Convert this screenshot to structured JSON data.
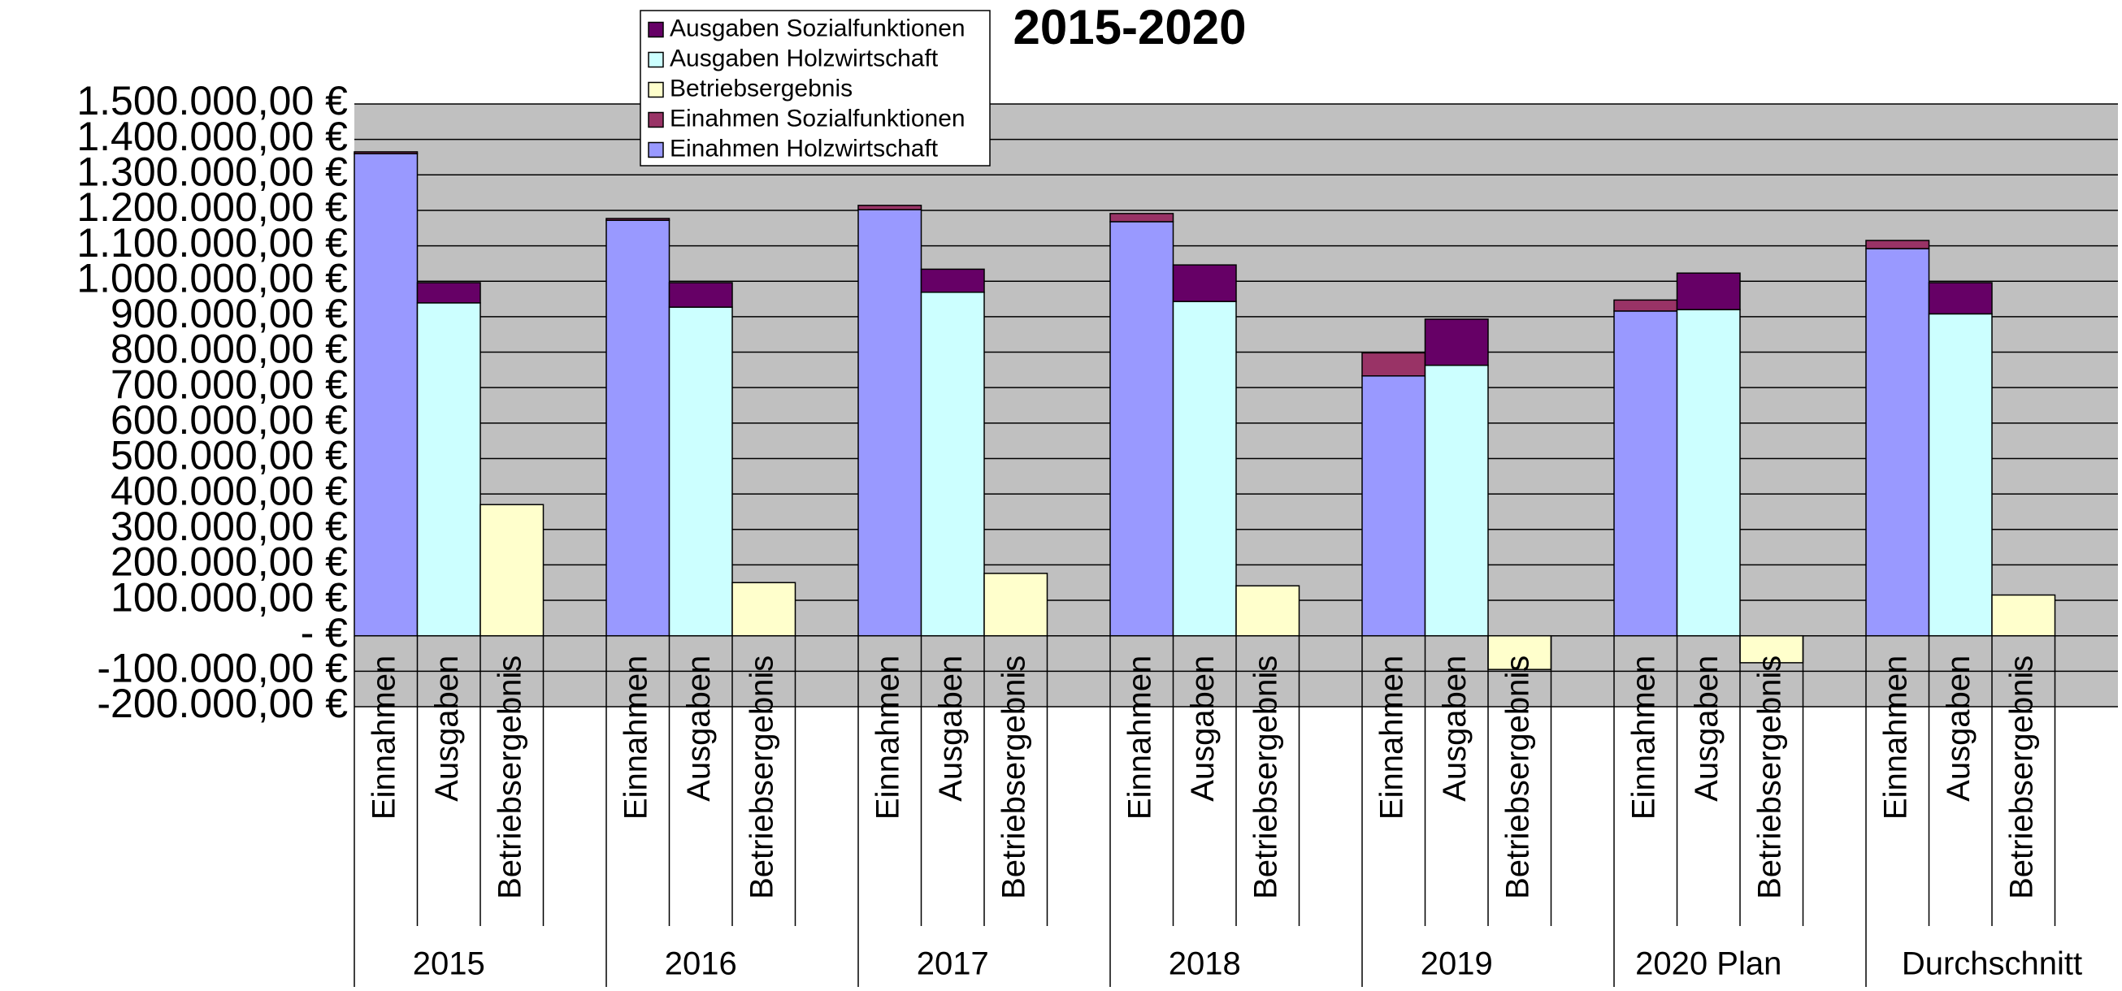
{
  "chart_data": {
    "type": "bar",
    "stacked": true,
    "title": "2015-2020",
    "groups": [
      "2015",
      "2016",
      "2017",
      "2018",
      "2019",
      "2020 Plan",
      "Durchschnitt"
    ],
    "categories": [
      "Einnahmen",
      "Ausgaben",
      "Betriebsergebnis",
      "Einnahmen",
      "Ausgaben",
      "Betriebsergebnis",
      "Einnahmen",
      "Ausgaben",
      "Betriebsergebnis",
      "Einnahmen",
      "Ausgaben",
      "Betriebsergebnis",
      "Einnahmen",
      "Ausgaben",
      "Betriebsergebnis",
      "Einnahmen",
      "Ausgaben",
      "Betriebsergebnis",
      "Einnahmen",
      "Ausgaben",
      "Betriebsergebnis"
    ],
    "series": [
      {
        "name": "Einahmen Holzwirtschaft",
        "color": "#9999ff",
        "values": [
          1360000,
          null,
          null,
          1172000,
          null,
          null,
          1202000,
          null,
          null,
          1168000,
          null,
          null,
          733000,
          null,
          null,
          916000,
          null,
          null,
          1092000,
          null,
          null
        ]
      },
      {
        "name": "Einahmen Sozialfunktionen",
        "color": "#993366",
        "values": [
          5000,
          null,
          null,
          5000,
          null,
          null,
          12000,
          null,
          null,
          23000,
          null,
          null,
          65000,
          null,
          null,
          31000,
          null,
          null,
          23000,
          null,
          null
        ]
      },
      {
        "name": "Betriebsergebnis",
        "color": "#ffffcc",
        "values": [
          null,
          null,
          370000,
          null,
          null,
          150000,
          null,
          null,
          176000,
          null,
          null,
          141000,
          null,
          null,
          -95000,
          null,
          null,
          -76000,
          null,
          null,
          115000
        ]
      },
      {
        "name": "Ausgaben Holzwirtschaft",
        "color": "#ccffff",
        "values": [
          null,
          939000,
          null,
          null,
          927000,
          null,
          null,
          969000,
          null,
          null,
          943000,
          null,
          null,
          763000,
          null,
          null,
          920000,
          null,
          null,
          908000,
          null
        ]
      },
      {
        "name": "Ausgaben Sozialfunktionen",
        "color": "#660066",
        "values": [
          null,
          57000,
          null,
          null,
          69000,
          null,
          null,
          65000,
          null,
          null,
          103000,
          null,
          null,
          130000,
          null,
          null,
          103000,
          null,
          null,
          88000,
          null
        ]
      }
    ],
    "ylim": [
      -200000,
      1500000
    ],
    "yticks": [
      {
        "value": -200000,
        "label": "-200.000,00 €"
      },
      {
        "value": -100000,
        "label": "-100.000,00 €"
      },
      {
        "value": 0,
        "label": "- €"
      },
      {
        "value": 100000,
        "label": "100.000,00 €"
      },
      {
        "value": 200000,
        "label": "200.000,00 €"
      },
      {
        "value": 300000,
        "label": "300.000,00 €"
      },
      {
        "value": 400000,
        "label": "400.000,00 €"
      },
      {
        "value": 500000,
        "label": "500.000,00 €"
      },
      {
        "value": 600000,
        "label": "600.000,00 €"
      },
      {
        "value": 700000,
        "label": "700.000,00 €"
      },
      {
        "value": 800000,
        "label": "800.000,00 €"
      },
      {
        "value": 900000,
        "label": "900.000,00 €"
      },
      {
        "value": 1000000,
        "label": "1.000.000,00 €"
      },
      {
        "value": 1100000,
        "label": "1.100.000,00 €"
      },
      {
        "value": 1200000,
        "label": "1.200.000,00 €"
      },
      {
        "value": 1300000,
        "label": "1.300.000,00 €"
      },
      {
        "value": 1400000,
        "label": "1.400.000,00 €"
      },
      {
        "value": 1500000,
        "label": "1.500.000,00 €"
      }
    ],
    "grid": true,
    "plot_background": "#c0c0c0",
    "legend": "top"
  }
}
